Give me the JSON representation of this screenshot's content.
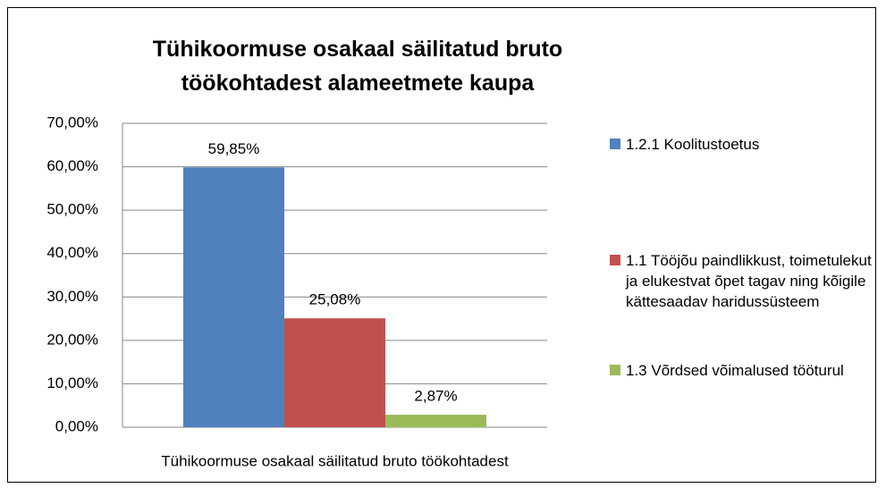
{
  "chart_data": {
    "type": "bar",
    "title": "Tühikoormuse osakaal säilitatud bruto töökohtadest alameetmete kaupa",
    "categories": [
      "Tühikoormuse osakaal säilitatud bruto töökohtadest"
    ],
    "series": [
      {
        "name": "1.2.1 Koolitustoetus",
        "color": "#4f81bd",
        "values": [
          59.85
        ],
        "value_labels": [
          "59,85%"
        ]
      },
      {
        "name": "1.1 Tööjõu paindlikkust, toimetulekut ja elukestvat õpet tagav ning kõigile kättesaadav haridussüsteem",
        "color": "#c0504d",
        "values": [
          25.08
        ],
        "value_labels": [
          "25,08%"
        ]
      },
      {
        "name": "1.3 Võrdsed võimalused tööturul",
        "color": "#9bbb59",
        "values": [
          2.87
        ],
        "value_labels": [
          "2,87%"
        ]
      }
    ],
    "ylim": [
      0,
      70
    ],
    "yticks": [
      {
        "value": 0,
        "label": "0,00%"
      },
      {
        "value": 10,
        "label": "10,00%"
      },
      {
        "value": 20,
        "label": "20,00%"
      },
      {
        "value": 30,
        "label": "30,00%"
      },
      {
        "value": 40,
        "label": "40,00%"
      },
      {
        "value": 50,
        "label": "50,00%"
      },
      {
        "value": 60,
        "label": "60,00%"
      },
      {
        "value": 70,
        "label": "70,00%"
      }
    ],
    "grid": true,
    "legend": "right"
  }
}
